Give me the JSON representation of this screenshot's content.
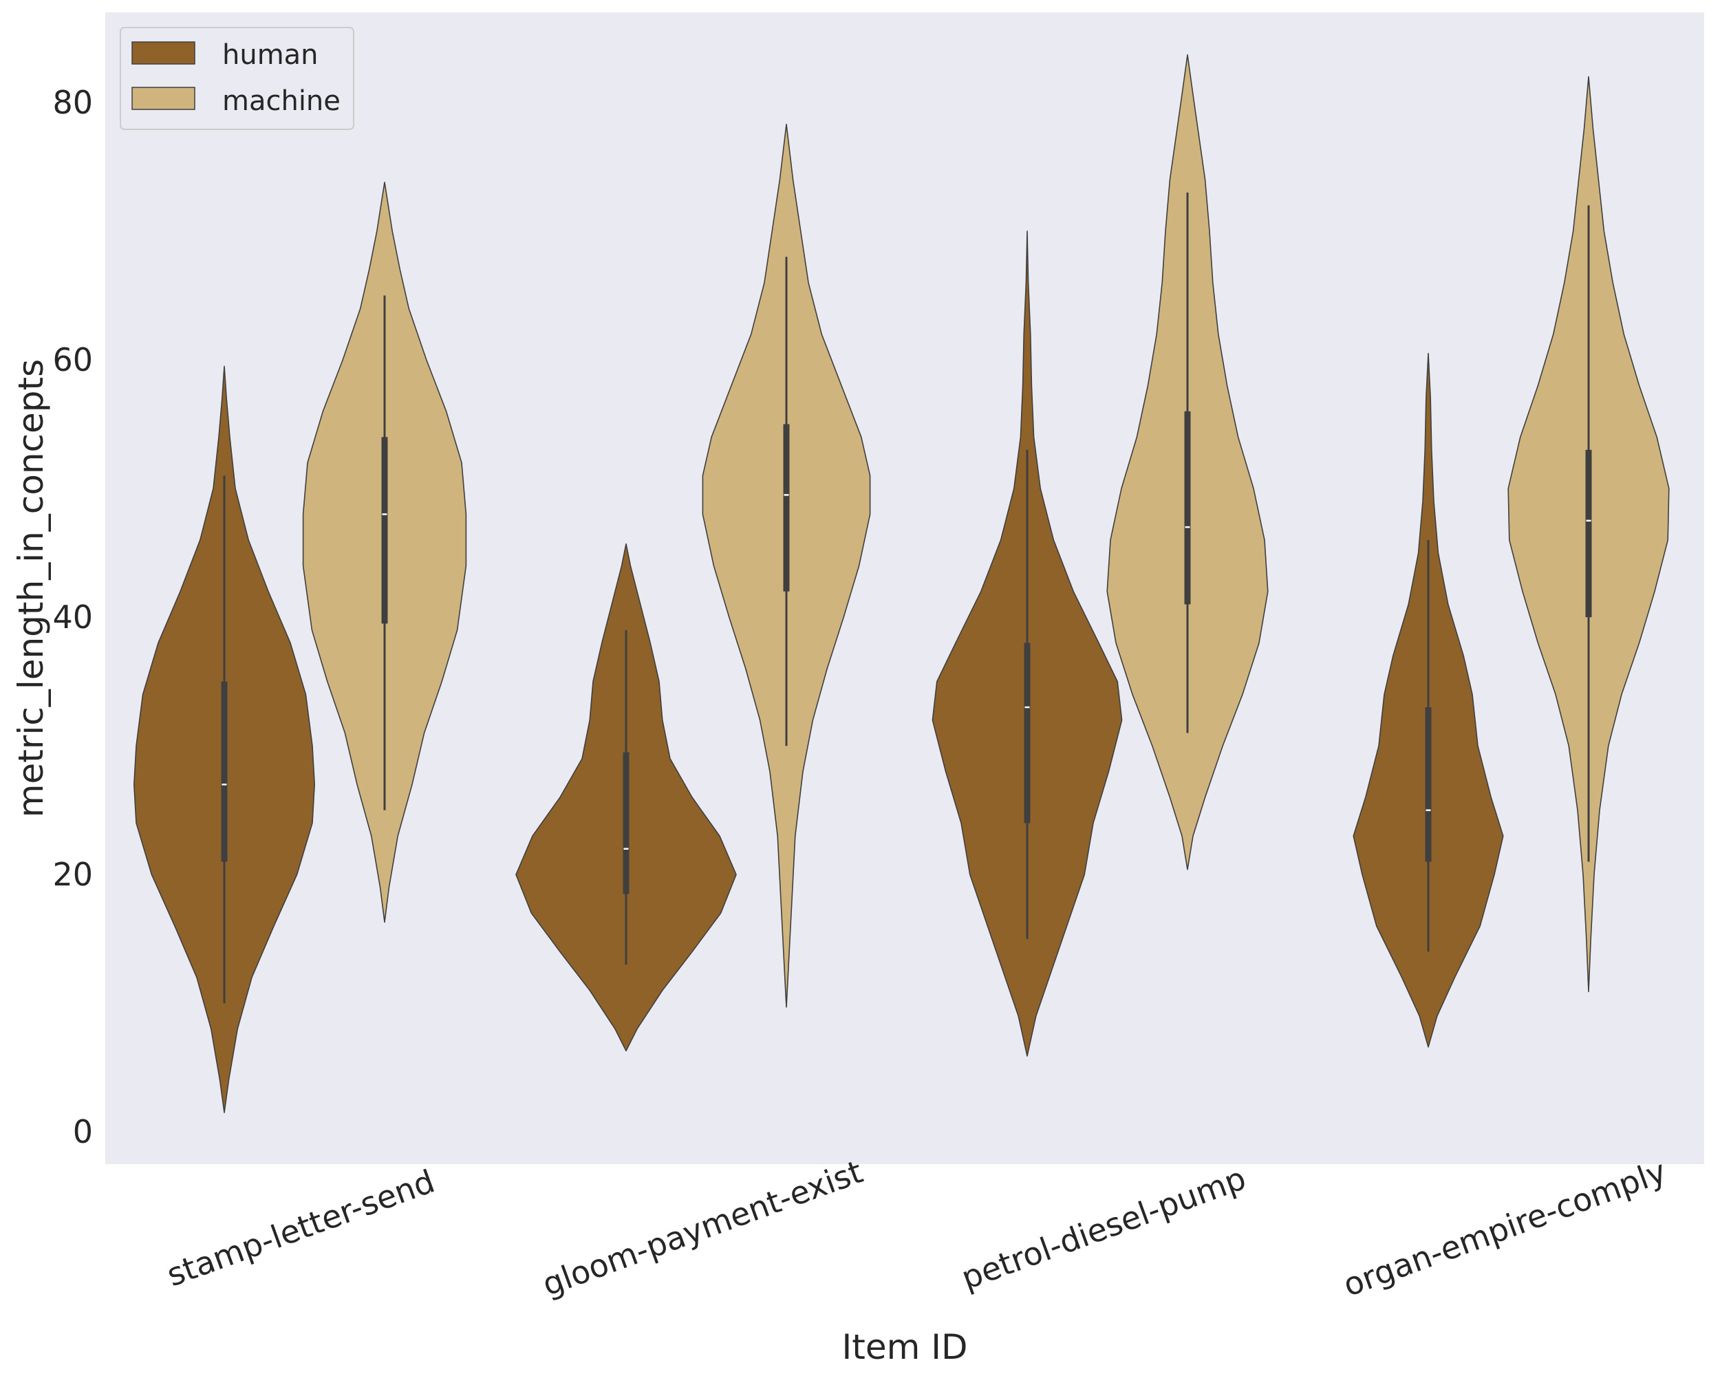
{
  "chart_data": {
    "type": "violin",
    "title": "",
    "xlabel": "Item ID",
    "ylabel": "metric_length_in_concepts",
    "ylim": [
      -2.5,
      87
    ],
    "yticks": [
      0,
      20,
      40,
      60,
      80
    ],
    "categories": [
      "stamp-letter-send",
      "gloom-payment-exist",
      "petrol-diesel-pump",
      "organ-empire-comply"
    ],
    "grid": false,
    "legend_position": "top-left",
    "series": [
      {
        "name": "human",
        "color": "#8f6229",
        "groups": [
          {
            "min": 10,
            "q1": 21,
            "median": 27,
            "q3": 35,
            "max": 51,
            "low": 1.5,
            "high": 59.5,
            "profile": [
              [
                1.5,
                0
              ],
              [
                4,
                0.04
              ],
              [
                8,
                0.12
              ],
              [
                12,
                0.25
              ],
              [
                16,
                0.45
              ],
              [
                20,
                0.66
              ],
              [
                24,
                0.8
              ],
              [
                27,
                0.82
              ],
              [
                30,
                0.8
              ],
              [
                34,
                0.74
              ],
              [
                38,
                0.6
              ],
              [
                42,
                0.4
              ],
              [
                46,
                0.22
              ],
              [
                50,
                0.1
              ],
              [
                54,
                0.05
              ],
              [
                57,
                0.02
              ],
              [
                59.5,
                0
              ]
            ]
          },
          {
            "min": 13,
            "q1": 18.5,
            "median": 22,
            "q3": 29.5,
            "max": 39,
            "low": 6.3,
            "high": 45.7,
            "profile": [
              [
                6.3,
                0
              ],
              [
                8,
                0.1
              ],
              [
                11,
                0.33
              ],
              [
                14,
                0.6
              ],
              [
                17,
                0.86
              ],
              [
                20,
                1.0
              ],
              [
                23,
                0.85
              ],
              [
                26,
                0.6
              ],
              [
                29,
                0.4
              ],
              [
                32,
                0.33
              ],
              [
                35,
                0.3
              ],
              [
                38,
                0.22
              ],
              [
                41,
                0.13
              ],
              [
                44,
                0.04
              ],
              [
                45.7,
                0
              ]
            ]
          },
          {
            "min": 15,
            "q1": 24,
            "median": 33,
            "q3": 38,
            "max": 53,
            "low": 5.9,
            "high": 70,
            "profile": [
              [
                5.9,
                0
              ],
              [
                9,
                0.08
              ],
              [
                12,
                0.2
              ],
              [
                16,
                0.36
              ],
              [
                20,
                0.52
              ],
              [
                24,
                0.6
              ],
              [
                28,
                0.74
              ],
              [
                32,
                0.86
              ],
              [
                35,
                0.82
              ],
              [
                38,
                0.65
              ],
              [
                42,
                0.42
              ],
              [
                46,
                0.24
              ],
              [
                50,
                0.12
              ],
              [
                54,
                0.06
              ],
              [
                58,
                0.04
              ],
              [
                62,
                0.03
              ],
              [
                66,
                0.01
              ],
              [
                70,
                0
              ]
            ]
          },
          {
            "min": 14,
            "q1": 21,
            "median": 25,
            "q3": 33,
            "max": 46,
            "low": 6.6,
            "high": 60.5,
            "profile": [
              [
                6.6,
                0
              ],
              [
                9,
                0.08
              ],
              [
                12,
                0.24
              ],
              [
                16,
                0.47
              ],
              [
                20,
                0.6
              ],
              [
                23,
                0.68
              ],
              [
                26,
                0.57
              ],
              [
                30,
                0.45
              ],
              [
                34,
                0.4
              ],
              [
                37,
                0.32
              ],
              [
                41,
                0.18
              ],
              [
                45,
                0.09
              ],
              [
                49,
                0.05
              ],
              [
                53,
                0.03
              ],
              [
                57,
                0.02
              ],
              [
                60.5,
                0
              ]
            ]
          }
        ]
      },
      {
        "name": "machine",
        "color": "#cfb47d",
        "groups": [
          {
            "min": 25,
            "q1": 39.5,
            "median": 48,
            "q3": 54,
            "max": 65,
            "low": 16.3,
            "high": 73.8,
            "profile": [
              [
                16.3,
                0
              ],
              [
                19,
                0.04
              ],
              [
                23,
                0.12
              ],
              [
                27,
                0.25
              ],
              [
                31,
                0.36
              ],
              [
                35,
                0.52
              ],
              [
                39,
                0.66
              ],
              [
                44,
                0.74
              ],
              [
                48,
                0.74
              ],
              [
                52,
                0.7
              ],
              [
                56,
                0.56
              ],
              [
                60,
                0.38
              ],
              [
                64,
                0.22
              ],
              [
                67,
                0.14
              ],
              [
                70,
                0.07
              ],
              [
                73.8,
                0
              ]
            ]
          },
          {
            "min": 30,
            "q1": 42,
            "median": 49.5,
            "q3": 55,
            "max": 68,
            "low": 9.7,
            "high": 78.3,
            "profile": [
              [
                9.7,
                0
              ],
              [
                13,
                0.02
              ],
              [
                18,
                0.05
              ],
              [
                23,
                0.08
              ],
              [
                28,
                0.15
              ],
              [
                32,
                0.24
              ],
              [
                36,
                0.37
              ],
              [
                40,
                0.52
              ],
              [
                44,
                0.66
              ],
              [
                48,
                0.76
              ],
              [
                51,
                0.76
              ],
              [
                54,
                0.68
              ],
              [
                58,
                0.5
              ],
              [
                62,
                0.32
              ],
              [
                66,
                0.2
              ],
              [
                70,
                0.13
              ],
              [
                74,
                0.06
              ],
              [
                78.3,
                0
              ]
            ]
          },
          {
            "min": 31,
            "q1": 41,
            "median": 47,
            "q3": 56,
            "max": 73,
            "low": 20.4,
            "high": 83.7,
            "profile": [
              [
                20.4,
                0
              ],
              [
                23,
                0.05
              ],
              [
                26,
                0.16
              ],
              [
                30,
                0.32
              ],
              [
                34,
                0.5
              ],
              [
                38,
                0.65
              ],
              [
                42,
                0.73
              ],
              [
                46,
                0.7
              ],
              [
                50,
                0.6
              ],
              [
                54,
                0.46
              ],
              [
                58,
                0.36
              ],
              [
                62,
                0.28
              ],
              [
                66,
                0.23
              ],
              [
                70,
                0.2
              ],
              [
                74,
                0.16
              ],
              [
                77,
                0.11
              ],
              [
                80,
                0.06
              ],
              [
                83.7,
                0
              ]
            ]
          },
          {
            "min": 21,
            "q1": 40,
            "median": 47.5,
            "q3": 53,
            "max": 72,
            "low": 10.9,
            "high": 82,
            "profile": [
              [
                10.9,
                0
              ],
              [
                15,
                0.02
              ],
              [
                20,
                0.05
              ],
              [
                25,
                0.1
              ],
              [
                30,
                0.18
              ],
              [
                34,
                0.3
              ],
              [
                38,
                0.46
              ],
              [
                42,
                0.6
              ],
              [
                46,
                0.72
              ],
              [
                50,
                0.73
              ],
              [
                54,
                0.62
              ],
              [
                58,
                0.46
              ],
              [
                62,
                0.32
              ],
              [
                66,
                0.22
              ],
              [
                70,
                0.14
              ],
              [
                74,
                0.09
              ],
              [
                78,
                0.04
              ],
              [
                82,
                0
              ]
            ]
          }
        ]
      }
    ]
  }
}
